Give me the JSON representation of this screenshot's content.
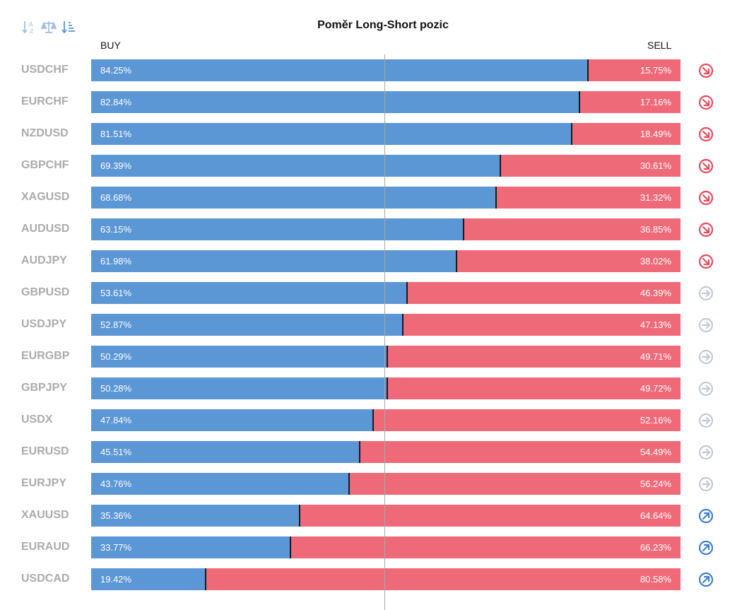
{
  "title": "Poměr Long-Short pozic",
  "columns": {
    "buy_label": "BUY",
    "sell_label": "SELL"
  },
  "colors": {
    "buy": "#5b96d5",
    "sell": "#ef6a78",
    "signal_down": "#e84a5c",
    "signal_neutral": "#c3cad6",
    "signal_up": "#3d7fd0",
    "symbol_text": "#a9abaf"
  },
  "toolbar": {
    "icons": [
      "sort-alpha-icon",
      "balance-scale-icon",
      "sort-amount-icon"
    ]
  },
  "chart_data": {
    "type": "bar",
    "stacked": true,
    "orientation": "horizontal",
    "title": "Poměr Long-Short pozic",
    "categories": [
      "USDCHF",
      "EURCHF",
      "NZDUSD",
      "GBPCHF",
      "XAGUSD",
      "AUDUSD",
      "AUDJPY",
      "GBPUSD",
      "USDJPY",
      "EURGBP",
      "GBPJPY",
      "USDX",
      "EURUSD",
      "EURJPY",
      "XAUUSD",
      "EURAUD",
      "USDCAD"
    ],
    "series": [
      {
        "name": "BUY",
        "values": [
          84.25,
          82.84,
          81.51,
          69.39,
          68.68,
          63.15,
          61.98,
          53.61,
          52.87,
          50.29,
          50.28,
          47.84,
          45.51,
          43.76,
          35.36,
          33.77,
          19.42
        ]
      },
      {
        "name": "SELL",
        "values": [
          15.75,
          17.16,
          18.49,
          30.61,
          31.32,
          36.85,
          38.02,
          46.39,
          47.13,
          49.71,
          49.72,
          52.16,
          54.49,
          56.24,
          64.64,
          66.23,
          80.58
        ]
      }
    ],
    "buy_labels": [
      "84.25%",
      "82.84%",
      "81.51%",
      "69.39%",
      "68.68%",
      "63.15%",
      "61.98%",
      "53.61%",
      "52.87%",
      "50.29%",
      "50.28%",
      "47.84%",
      "45.51%",
      "43.76%",
      "35.36%",
      "33.77%",
      "19.42%"
    ],
    "sell_labels": [
      "15.75%",
      "17.16%",
      "18.49%",
      "30.61%",
      "31.32%",
      "36.85%",
      "38.02%",
      "46.39%",
      "47.13%",
      "49.71%",
      "49.72%",
      "52.16%",
      "54.49%",
      "56.24%",
      "64.64%",
      "66.23%",
      "80.58%"
    ],
    "signals": [
      "down",
      "down",
      "down",
      "down",
      "down",
      "down",
      "down",
      "neutral",
      "neutral",
      "neutral",
      "neutral",
      "neutral",
      "neutral",
      "neutral",
      "up",
      "up",
      "up"
    ],
    "xlim": [
      0,
      100
    ],
    "reference_line": 50,
    "grid": false
  }
}
